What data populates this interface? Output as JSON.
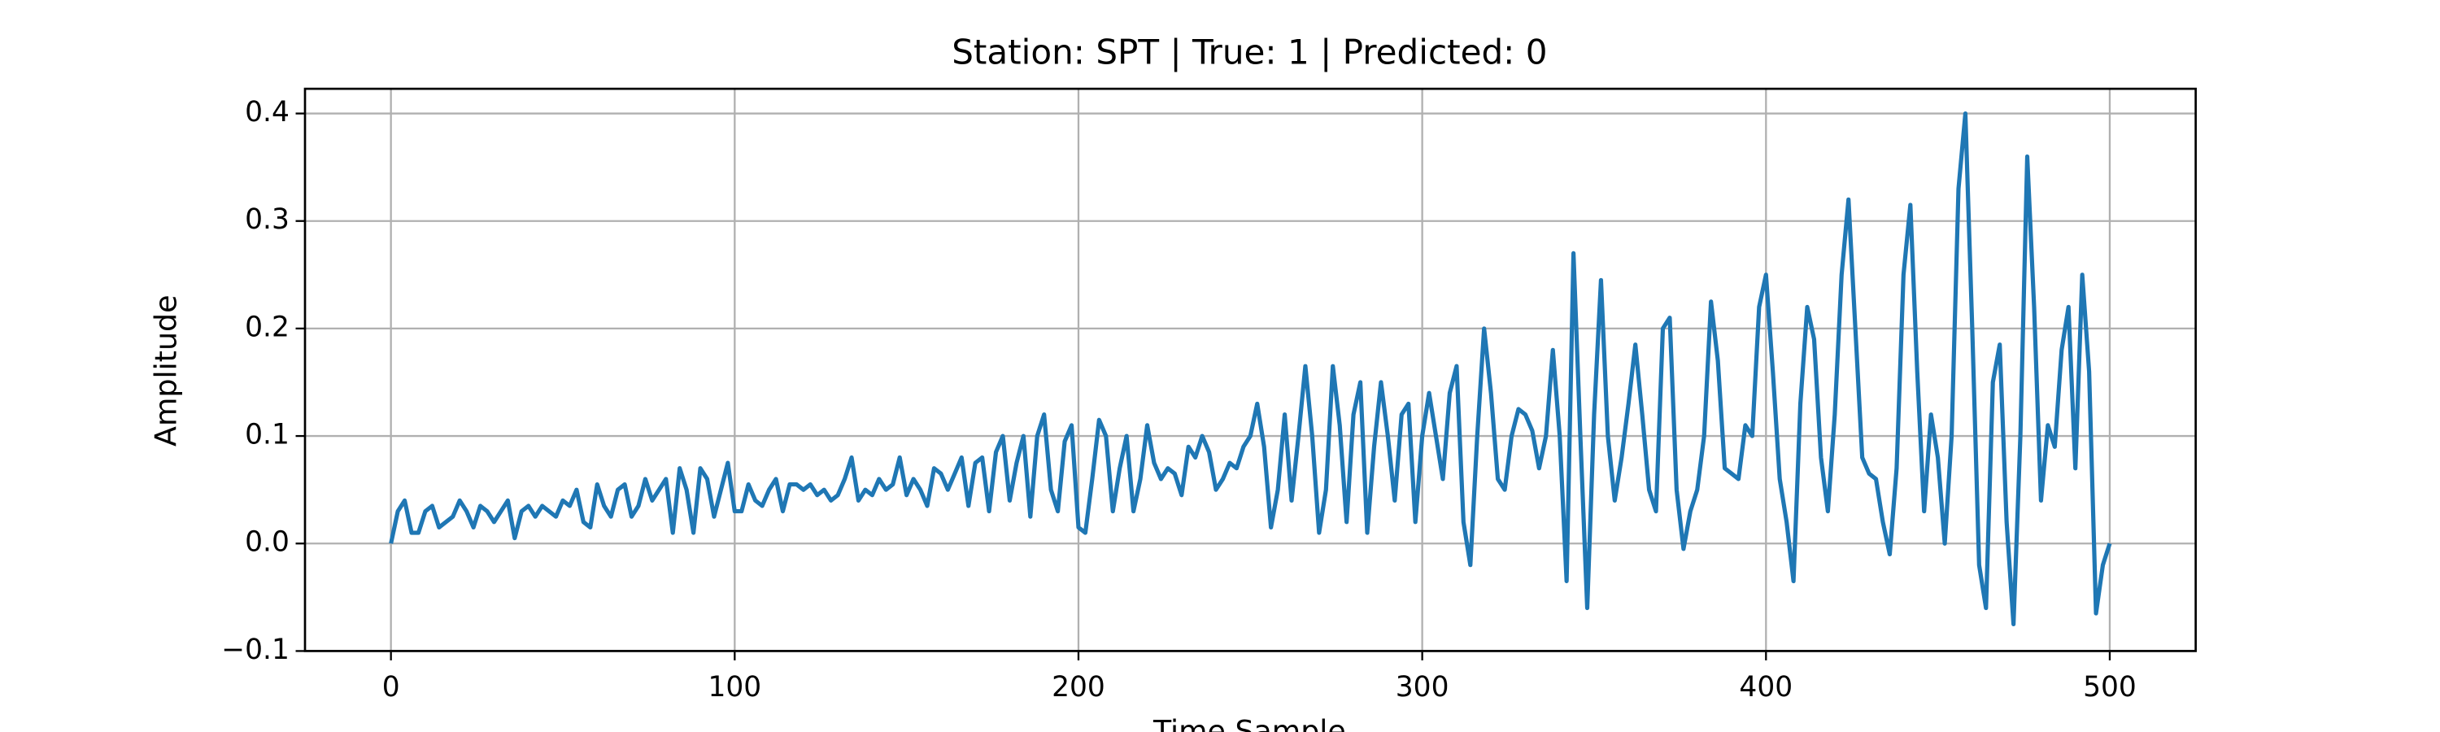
{
  "chart_data": {
    "type": "line",
    "title": "Station: SPT | True: 1 | Predicted: 0",
    "xlabel": "Time Sample",
    "ylabel": "Amplitude",
    "xlim": [
      -25,
      525
    ],
    "ylim": [
      -0.1,
      0.423
    ],
    "xticks": [
      0,
      100,
      200,
      300,
      400,
      500
    ],
    "yticks": [
      {
        "value": -0.1,
        "label": "−0.1"
      },
      {
        "value": 0,
        "label": "0.0"
      },
      0.1,
      0.2,
      0.3,
      0.4
    ],
    "grid": true,
    "x": [
      0,
      2,
      4,
      6,
      8,
      10,
      12,
      14,
      16,
      18,
      20,
      22,
      24,
      26,
      28,
      30,
      32,
      34,
      36,
      38,
      40,
      42,
      44,
      46,
      48,
      50,
      52,
      54,
      56,
      58,
      60,
      62,
      64,
      66,
      68,
      70,
      72,
      74,
      76,
      78,
      80,
      82,
      84,
      86,
      88,
      90,
      92,
      94,
      96,
      98,
      100,
      102,
      104,
      106,
      108,
      110,
      112,
      114,
      116,
      118,
      120,
      122,
      124,
      126,
      128,
      130,
      132,
      134,
      136,
      138,
      140,
      142,
      144,
      146,
      148,
      150,
      152,
      154,
      156,
      158,
      160,
      162,
      164,
      166,
      168,
      170,
      172,
      174,
      176,
      178,
      180,
      182,
      184,
      186,
      188,
      190,
      192,
      194,
      196,
      198,
      200,
      202,
      204,
      206,
      208,
      210,
      212,
      214,
      216,
      218,
      220,
      222,
      224,
      226,
      228,
      230,
      232,
      234,
      236,
      238,
      240,
      242,
      244,
      246,
      248,
      250,
      252,
      254,
      256,
      258,
      260,
      262,
      264,
      266,
      268,
      270,
      272,
      274,
      276,
      278,
      280,
      282,
      284,
      286,
      288,
      290,
      292,
      294,
      296,
      298,
      300,
      302,
      304,
      306,
      308,
      310,
      312,
      314,
      316,
      318,
      320,
      322,
      324,
      326,
      328,
      330,
      332,
      334,
      336,
      338,
      340,
      342,
      344,
      346,
      348,
      350,
      352,
      354,
      356,
      358,
      360,
      362,
      364,
      366,
      368,
      370,
      372,
      374,
      376,
      378,
      380,
      382,
      384,
      386,
      388,
      390,
      392,
      394,
      396,
      398,
      400,
      402,
      404,
      406,
      408,
      410,
      412,
      414,
      416,
      418,
      420,
      422,
      424,
      426,
      428,
      430,
      432,
      434,
      436,
      438,
      440,
      442,
      444,
      446,
      448,
      450,
      452,
      454,
      456,
      458,
      460,
      462,
      464,
      466,
      468,
      470,
      472,
      474,
      476,
      478,
      480,
      482,
      484,
      486,
      488,
      490,
      492,
      494,
      496,
      498,
      500
    ],
    "series": [
      {
        "name": "Amplitude",
        "color": "#1f77b4",
        "values": [
          0,
          0.03,
          0.04,
          0.01,
          0.01,
          0.03,
          0.035,
          0.015,
          0.02,
          0.025,
          0.04,
          0.03,
          0.015,
          0.035,
          0.03,
          0.02,
          0.03,
          0.04,
          0.005,
          0.03,
          0.035,
          0.025,
          0.035,
          0.03,
          0.025,
          0.04,
          0.035,
          0.05,
          0.02,
          0.015,
          0.055,
          0.035,
          0.025,
          0.05,
          0.055,
          0.025,
          0.035,
          0.06,
          0.04,
          0.05,
          0.06,
          0.01,
          0.07,
          0.05,
          0.01,
          0.07,
          0.06,
          0.025,
          0.05,
          0.075,
          0.03,
          0.03,
          0.055,
          0.04,
          0.035,
          0.05,
          0.06,
          0.03,
          0.055,
          0.055,
          0.05,
          0.055,
          0.045,
          0.05,
          0.04,
          0.045,
          0.06,
          0.08,
          0.04,
          0.05,
          0.045,
          0.06,
          0.05,
          0.055,
          0.08,
          0.045,
          0.06,
          0.05,
          0.035,
          0.07,
          0.065,
          0.05,
          0.065,
          0.08,
          0.035,
          0.075,
          0.08,
          0.03,
          0.085,
          0.1,
          0.04,
          0.075,
          0.1,
          0.025,
          0.1,
          0.12,
          0.05,
          0.03,
          0.095,
          0.11,
          0.015,
          0.01,
          0.06,
          0.115,
          0.1,
          0.03,
          0.07,
          0.1,
          0.03,
          0.06,
          0.11,
          0.075,
          0.06,
          0.07,
          0.065,
          0.045,
          0.09,
          0.08,
          0.1,
          0.085,
          0.05,
          0.06,
          0.075,
          0.07,
          0.09,
          0.1,
          0.13,
          0.09,
          0.015,
          0.05,
          0.12,
          0.04,
          0.1,
          0.165,
          0.1,
          0.01,
          0.05,
          0.165,
          0.11,
          0.02,
          0.12,
          0.15,
          0.01,
          0.09,
          0.15,
          0.1,
          0.04,
          0.12,
          0.13,
          0.02,
          0.1,
          0.14,
          0.1,
          0.06,
          0.14,
          0.165,
          0.02,
          -0.02,
          0.1,
          0.2,
          0.14,
          0.06,
          0.05,
          0.1,
          0.125,
          0.12,
          0.105,
          0.07,
          0.1,
          0.18,
          0.1,
          -0.035,
          0.27,
          0.1,
          -0.06,
          0.12,
          0.245,
          0.1,
          0.04,
          0.08,
          0.13,
          0.185,
          0.12,
          0.05,
          0.03,
          0.2,
          0.21,
          0.05,
          -0.005,
          0.03,
          0.05,
          0.1,
          0.225,
          0.17,
          0.07,
          0.065,
          0.06,
          0.11,
          0.1,
          0.22,
          0.25,
          0.16,
          0.06,
          0.02,
          -0.035,
          0.13,
          0.22,
          0.19,
          0.08,
          0.03,
          0.12,
          0.25,
          0.32,
          0.2,
          0.08,
          0.065,
          0.06,
          0.02,
          -0.01,
          0.07,
          0.25,
          0.315,
          0.16,
          0.03,
          0.12,
          0.08,
          0.0,
          0.1,
          0.33,
          0.4,
          0.2,
          -0.02,
          -0.06,
          0.15,
          0.185,
          0.02,
          -0.075,
          0.1,
          0.36,
          0.22,
          0.04,
          0.11,
          0.09,
          0.18,
          0.22,
          0.07,
          0.25,
          0.16,
          -0.065,
          -0.02,
          0.0
        ]
      }
    ]
  }
}
